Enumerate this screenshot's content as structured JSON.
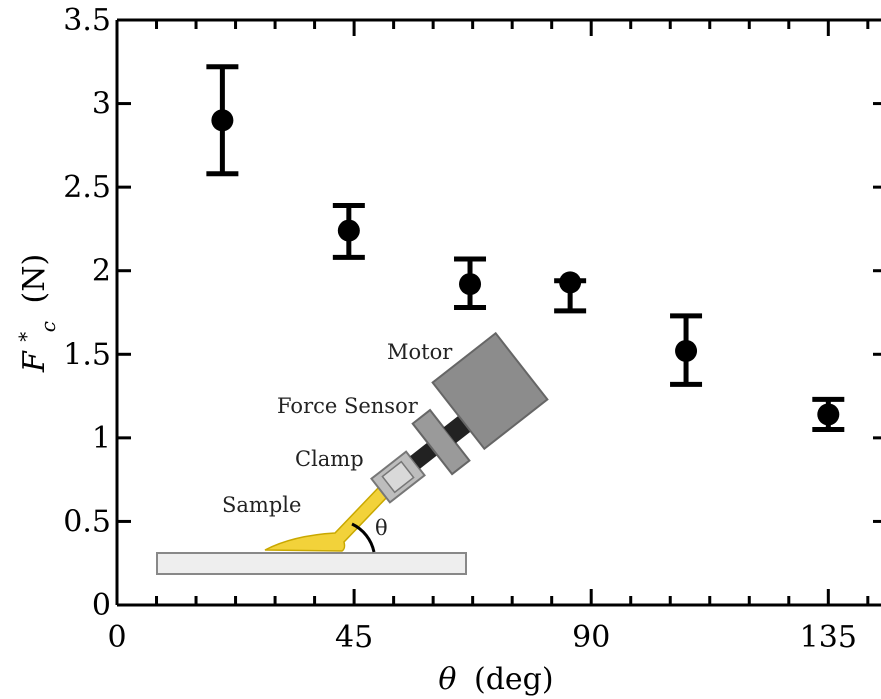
{
  "chart_data": {
    "type": "scatter",
    "title": "",
    "xlabel": {
      "symbol": "θ",
      "unit": "(deg)"
    },
    "ylabel": {
      "symbol": "F",
      "sub": "c",
      "sup": "*",
      "unit": "(N)"
    },
    "xlim": [
      0,
      145
    ],
    "ylim": [
      0,
      3.5
    ],
    "x_ticks": [
      0,
      45,
      90,
      135
    ],
    "y_ticks": [
      0,
      0.5,
      1,
      1.5,
      2,
      2.5,
      3,
      3.5
    ],
    "x_tick_labels": [
      "0",
      "45",
      "90",
      "135"
    ],
    "y_tick_labels": [
      "0",
      "0.5",
      "1",
      "1.5",
      "2",
      "2.5",
      "3",
      "3.5"
    ],
    "grid": false,
    "points": [
      {
        "x": 20,
        "y": 2.9,
        "err_low": 2.58,
        "err_high": 3.22
      },
      {
        "x": 44,
        "y": 2.24,
        "err_low": 2.08,
        "err_high": 2.39
      },
      {
        "x": 67,
        "y": 1.92,
        "err_low": 1.78,
        "err_high": 2.07
      },
      {
        "x": 86,
        "y": 1.93,
        "err_low": 1.76,
        "err_high": 1.94
      },
      {
        "x": 108,
        "y": 1.52,
        "err_low": 1.32,
        "err_high": 1.73
      },
      {
        "x": 135,
        "y": 1.14,
        "err_low": 1.05,
        "err_high": 1.23
      }
    ],
    "point_color": "#000000"
  },
  "inset": {
    "labels": {
      "motor": "Motor",
      "force_sensor": "Force Sensor",
      "clamp": "Clamp",
      "sample": "Sample",
      "angle": "θ"
    },
    "colors": {
      "sample": "#f2d23a",
      "motor": "#8c8c8c",
      "clamp": "#bdbdbd",
      "substrate": "#eeeeee"
    }
  }
}
